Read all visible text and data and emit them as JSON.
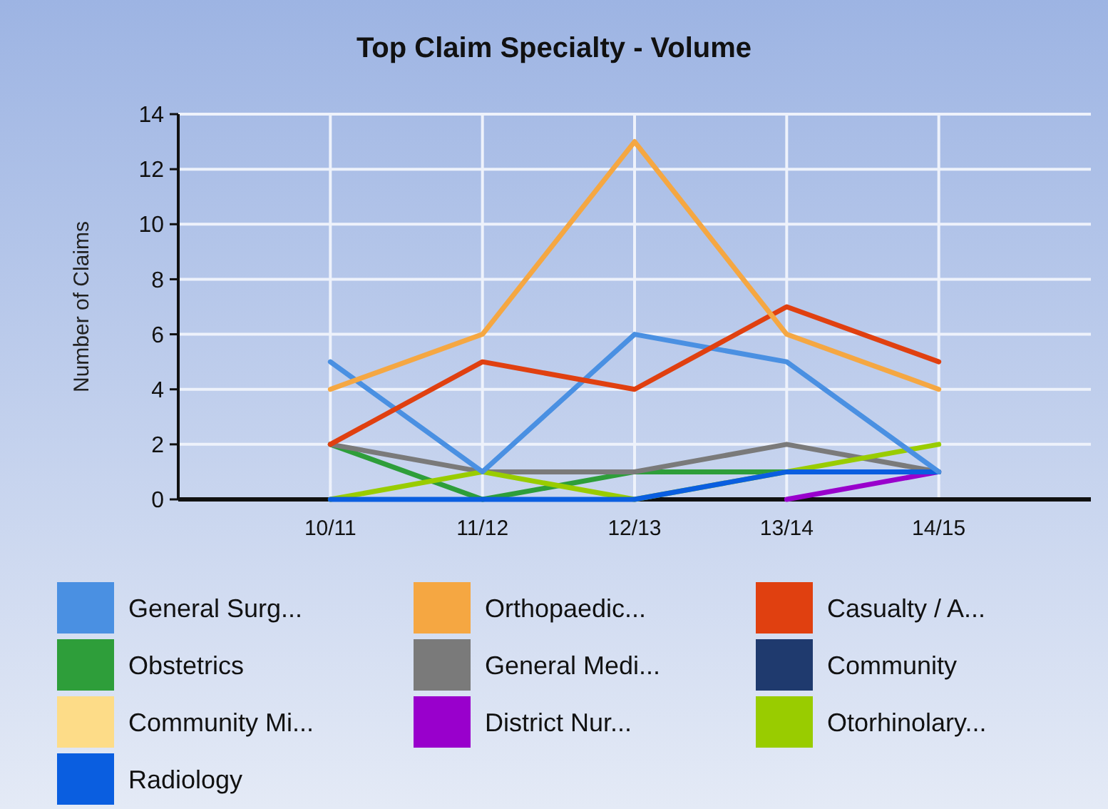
{
  "chart_data": {
    "type": "line",
    "title": "Top Claim Specialty - Volume",
    "ylabel": "Number of Claims",
    "categories": [
      "10/11",
      "11/12",
      "12/13",
      "13/14",
      "14/15"
    ],
    "ylim": [
      0,
      14
    ],
    "yticks": [
      0,
      2,
      4,
      6,
      8,
      10,
      12,
      14
    ],
    "grid": true,
    "legend": "bottom",
    "marker": "none",
    "line_style": "solid",
    "series": [
      {
        "name": "Community Mi...",
        "color": "#fddc88",
        "values": [
          null,
          null,
          null,
          null,
          null
        ]
      },
      {
        "name": "Community",
        "color": "#1f3a6e",
        "values": [
          null,
          null,
          null,
          null,
          null
        ]
      },
      {
        "name": "District Nur...",
        "color": "#9900cc",
        "values": [
          null,
          null,
          null,
          0,
          1
        ]
      },
      {
        "name": "Obstetrics",
        "color": "#2e9e3a",
        "values": [
          2,
          0,
          1,
          1,
          1
        ]
      },
      {
        "name": "General Medi...",
        "color": "#7a7a7a",
        "values": [
          2,
          1,
          1,
          2,
          1
        ]
      },
      {
        "name": "Otorhinolary...",
        "color": "#99cc00",
        "values": [
          0,
          1,
          0,
          1,
          2
        ]
      },
      {
        "name": "Radiology",
        "color": "#0a5ee0",
        "values": [
          0,
          0,
          0,
          1,
          1
        ]
      },
      {
        "name": "General Surg...",
        "color": "#4a90e2",
        "values": [
          5,
          1,
          6,
          5,
          1
        ]
      },
      {
        "name": "Casualty / A...",
        "color": "#e04010",
        "values": [
          2,
          5,
          4,
          7,
          5
        ]
      },
      {
        "name": "Orthopaedic...",
        "color": "#f5a742",
        "values": [
          4,
          6,
          13,
          6,
          4
        ]
      }
    ]
  }
}
